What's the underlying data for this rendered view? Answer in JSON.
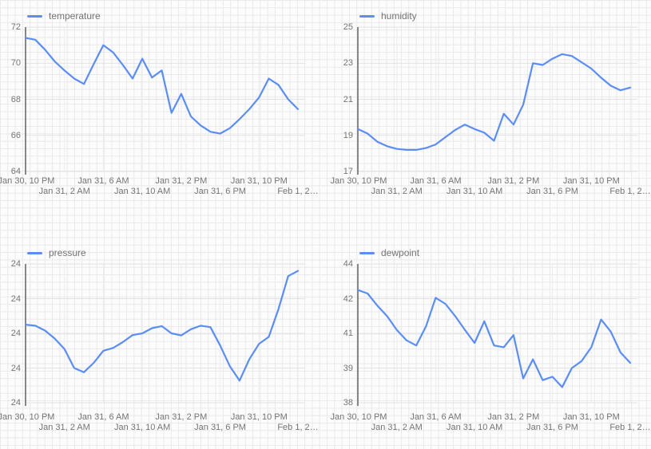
{
  "page": {
    "background_color": "#fcfcfc",
    "paper_grid_color": "#e9e9e9",
    "series_line_color": "#5b8df6",
    "axis_line_color": "#6b6b6b",
    "h_gridline_color": "#e4e2de",
    "v_gridline_color": "#ececec",
    "tick_text_color": "#757575"
  },
  "chart_data": [
    {
      "type": "line",
      "series_name": "temperature",
      "color": "#5b8df6",
      "legend_position": "top-left",
      "grid": true,
      "x_start": "Jan 30, 10 PM",
      "x_end": "Feb 1, 2 AM",
      "points_interval": "1 hour",
      "num_points": 29,
      "ylim": [
        64,
        72
      ],
      "ytick_labels": [
        "72",
        "70",
        "68",
        "66",
        "64"
      ],
      "ytick_values": [
        72,
        70,
        68,
        66,
        64
      ],
      "x_ticks": [
        {
          "label": "Jan 30, 10 PM",
          "t": 0,
          "row": 0
        },
        {
          "label": "Jan 31, 2 AM",
          "t": 4,
          "row": 1
        },
        {
          "label": "Jan 31, 6 AM",
          "t": 8,
          "row": 0
        },
        {
          "label": "Jan 31, 10 AM",
          "t": 12,
          "row": 1
        },
        {
          "label": "Jan 31, 2 PM",
          "t": 16,
          "row": 0
        },
        {
          "label": "Jan 31, 6 PM",
          "t": 20,
          "row": 1
        },
        {
          "label": "Jan 31, 10 PM",
          "t": 24,
          "row": 0
        },
        {
          "label": "Feb 1, 2…",
          "t": 28,
          "row": 1
        }
      ],
      "values": [
        71.4,
        71.3,
        70.75,
        70.1,
        69.6,
        69.15,
        68.85,
        69.95,
        71.0,
        70.6,
        69.9,
        69.15,
        70.25,
        69.2,
        69.6,
        67.25,
        68.3,
        67.05,
        66.55,
        66.2,
        66.1,
        66.4,
        66.9,
        67.45,
        68.1,
        69.15,
        68.8,
        68.0,
        67.45
      ]
    },
    {
      "type": "line",
      "series_name": "humidity",
      "color": "#5b8df6",
      "legend_position": "top-left",
      "grid": true,
      "x_start": "Jan 30, 10 PM",
      "x_end": "Feb 1, 2 AM",
      "points_interval": "1 hour",
      "num_points": 29,
      "ylim": [
        17,
        25
      ],
      "ytick_labels": [
        "25",
        "23",
        "21",
        "19",
        "17"
      ],
      "ytick_values": [
        25,
        23,
        21,
        19,
        17
      ],
      "x_ticks": [
        {
          "label": "Jan 30, 10 PM",
          "t": 0,
          "row": 0
        },
        {
          "label": "Jan 31, 2 AM",
          "t": 4,
          "row": 1
        },
        {
          "label": "Jan 31, 6 AM",
          "t": 8,
          "row": 0
        },
        {
          "label": "Jan 31, 10 AM",
          "t": 12,
          "row": 1
        },
        {
          "label": "Jan 31, 2 PM",
          "t": 16,
          "row": 0
        },
        {
          "label": "Jan 31, 6 PM",
          "t": 20,
          "row": 1
        },
        {
          "label": "Jan 31, 10 PM",
          "t": 24,
          "row": 0
        },
        {
          "label": "Feb 1, 2…",
          "t": 28,
          "row": 1
        }
      ],
      "values": [
        19.35,
        19.1,
        18.65,
        18.4,
        18.25,
        18.2,
        18.2,
        18.3,
        18.5,
        18.9,
        19.3,
        19.6,
        19.35,
        19.15,
        18.7,
        20.2,
        19.6,
        20.7,
        23.0,
        22.9,
        23.25,
        23.5,
        23.4,
        23.05,
        22.7,
        22.2,
        21.75,
        21.5,
        21.65
      ]
    },
    {
      "type": "line",
      "series_name": "pressure",
      "color": "#5b8df6",
      "legend_position": "top-left",
      "grid": true,
      "x_start": "Jan 30, 10 PM",
      "x_end": "Feb 1, 2 AM",
      "points_interval": "1 hour",
      "num_points": 29,
      "ylim": [
        23.8,
        24.2
      ],
      "ytick_labels": [
        "24",
        "24",
        "24",
        "24",
        "24"
      ],
      "ytick_values": [
        24.2,
        24.1,
        24.0,
        23.9,
        23.8
      ],
      "x_ticks": [
        {
          "label": "Jan 30, 10 PM",
          "t": 0,
          "row": 0
        },
        {
          "label": "Jan 31, 2 AM",
          "t": 4,
          "row": 1
        },
        {
          "label": "Jan 31, 6 AM",
          "t": 8,
          "row": 0
        },
        {
          "label": "Jan 31, 10 AM",
          "t": 12,
          "row": 1
        },
        {
          "label": "Jan 31, 2 PM",
          "t": 16,
          "row": 0
        },
        {
          "label": "Jan 31, 6 PM",
          "t": 20,
          "row": 1
        },
        {
          "label": "Jan 31, 10 PM",
          "t": 24,
          "row": 0
        },
        {
          "label": "Feb 1, 2…",
          "t": 28,
          "row": 1
        }
      ],
      "values": [
        24.025,
        24.022,
        24.008,
        23.985,
        23.955,
        23.9,
        23.888,
        23.915,
        23.95,
        23.958,
        23.975,
        23.995,
        24.0,
        24.015,
        24.021,
        24.0,
        23.994,
        24.012,
        24.022,
        24.018,
        23.965,
        23.905,
        23.864,
        23.925,
        23.97,
        23.99,
        24.07,
        24.165,
        24.18
      ]
    },
    {
      "type": "line",
      "series_name": "dewpoint",
      "color": "#5b8df6",
      "legend_position": "top-left",
      "grid": true,
      "x_start": "Jan 30, 10 PM",
      "x_end": "Feb 1, 2 AM",
      "points_interval": "1 hour",
      "num_points": 29,
      "ylim": [
        38,
        44
      ],
      "ytick_labels": [
        "44",
        "42",
        "41",
        "39",
        "38"
      ],
      "ytick_values": [
        44,
        42,
        41,
        39,
        38
      ],
      "x_ticks": [
        {
          "label": "Jan 30, 10 PM",
          "t": 0,
          "row": 0
        },
        {
          "label": "Jan 31, 2 AM",
          "t": 4,
          "row": 1
        },
        {
          "label": "Jan 31, 6 AM",
          "t": 8,
          "row": 0
        },
        {
          "label": "Jan 31, 10 AM",
          "t": 12,
          "row": 1
        },
        {
          "label": "Jan 31, 2 PM",
          "t": 16,
          "row": 0
        },
        {
          "label": "Jan 31, 6 PM",
          "t": 20,
          "row": 1
        },
        {
          "label": "Jan 31, 10 PM",
          "t": 24,
          "row": 0
        },
        {
          "label": "Feb 1, 2…",
          "t": 28,
          "row": 1
        }
      ],
      "values": [
        42.5,
        42.3,
        41.8,
        41.5,
        41.1,
        40.6,
        40.3,
        41.2,
        42.05,
        41.85,
        41.5,
        41.1,
        40.45,
        41.35,
        40.3,
        40.2,
        40.9,
        38.7,
        39.5,
        38.65,
        38.75,
        38.45,
        39.0,
        39.4,
        40.2,
        41.4,
        41.05,
        39.9,
        39.3
      ]
    }
  ]
}
